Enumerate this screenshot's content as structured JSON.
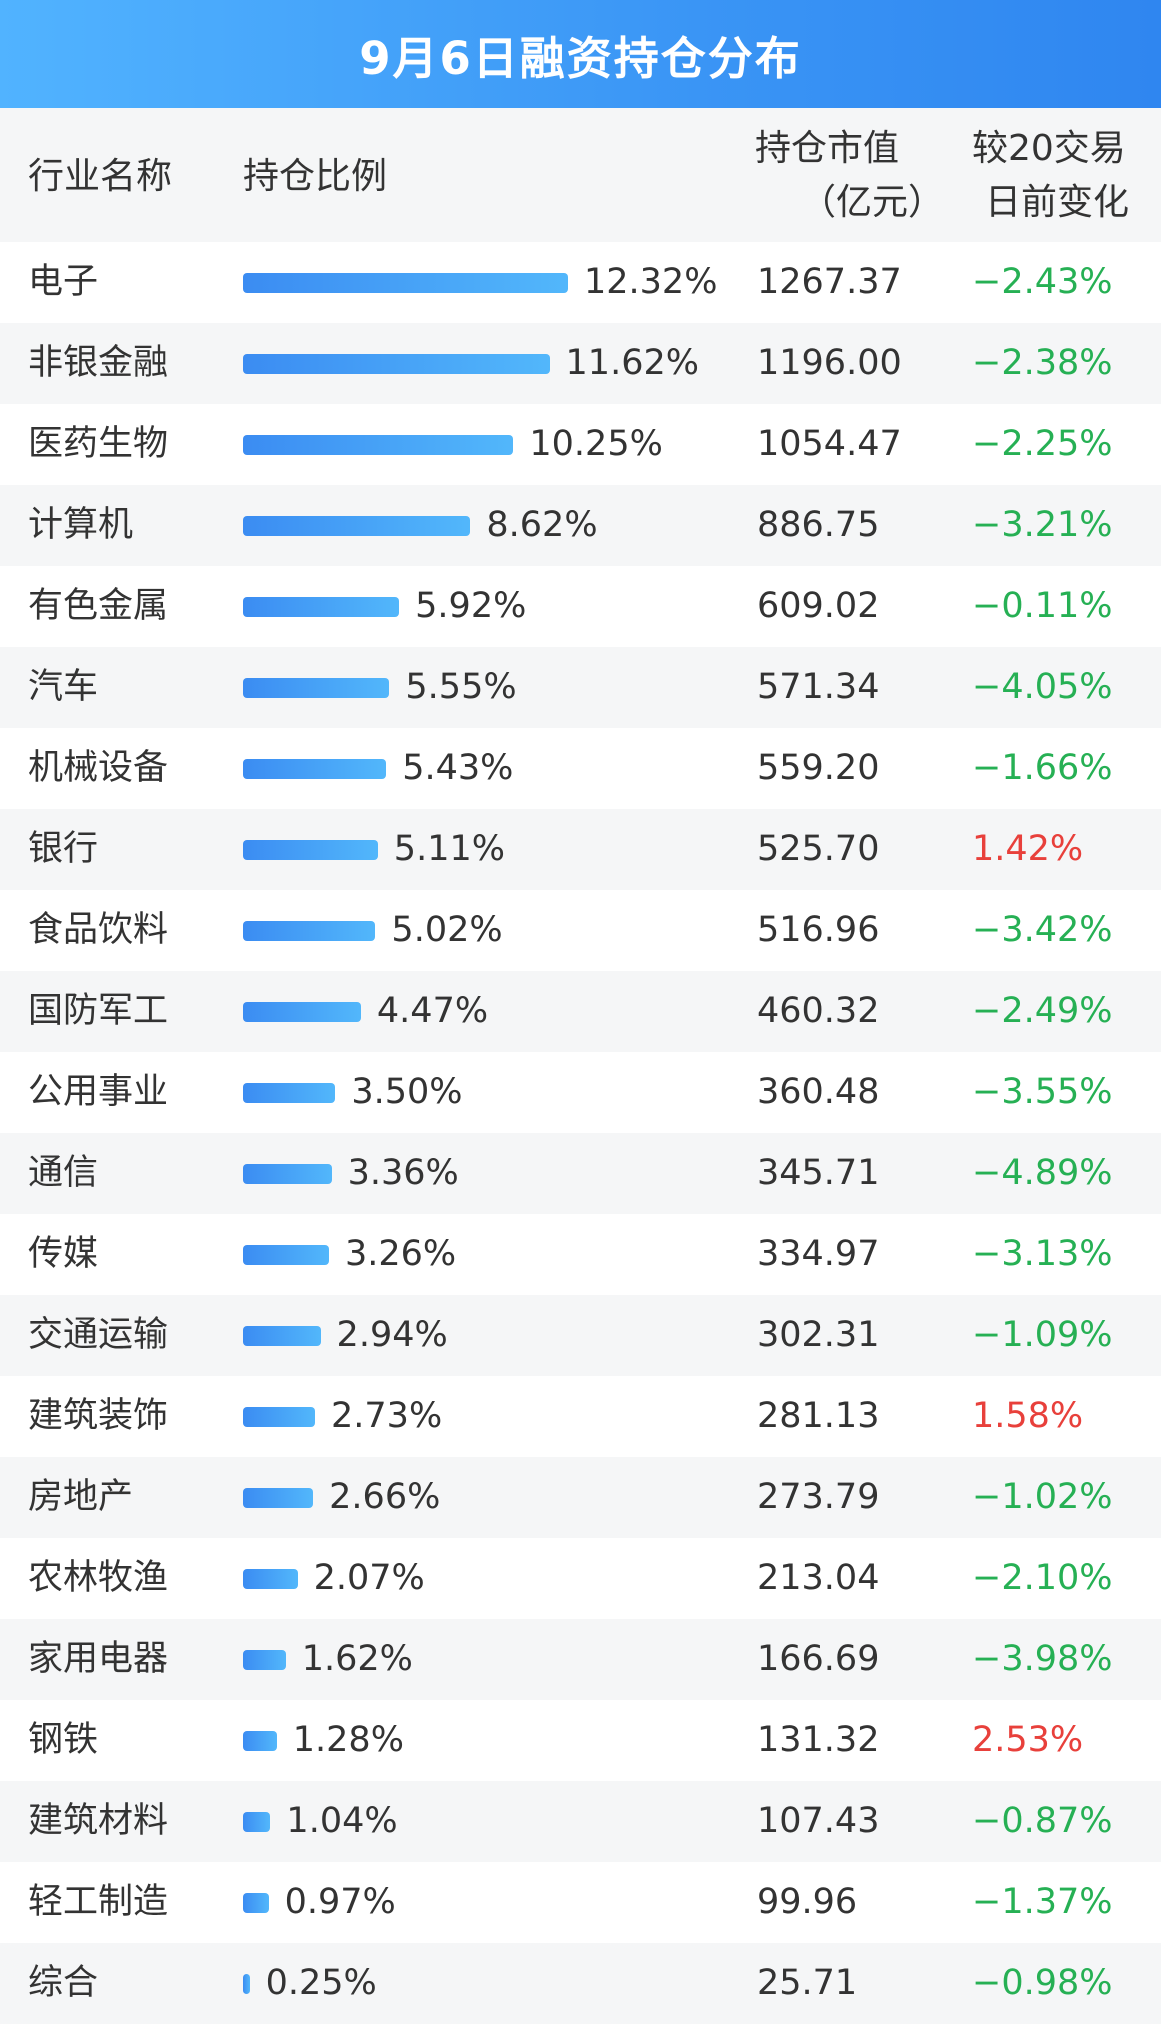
{
  "title": "9月6日融资持仓分布",
  "headers": {
    "industry": "行业名称",
    "ratio": "持仓比例",
    "value_line1": "持仓市值",
    "value_line2": "（亿元）",
    "change_line1": "较20交易",
    "change_line2": "日前变化"
  },
  "colors": {
    "title_bg": "#3a95f5",
    "bar": "#3b8cf2",
    "negative": "#26b054",
    "positive": "#e8403b",
    "stripe": "#f5f6f7"
  },
  "chart_data": {
    "type": "bar",
    "orientation": "horizontal",
    "categories": [
      "电子",
      "非银金融",
      "医药生物",
      "计算机",
      "有色金属",
      "汽车",
      "机械设备",
      "银行",
      "食品饮料",
      "国防军工",
      "公用事业",
      "通信",
      "传媒",
      "交通运输",
      "建筑装饰",
      "房地产",
      "农林牧渔",
      "家用电器",
      "钢铁",
      "建筑材料",
      "轻工制造",
      "综合"
    ],
    "ratio_values": [
      12.32,
      11.62,
      10.25,
      8.62,
      5.92,
      5.55,
      5.43,
      5.11,
      5.02,
      4.47,
      3.5,
      3.36,
      3.26,
      2.94,
      2.73,
      2.66,
      2.07,
      1.62,
      1.28,
      1.04,
      0.97,
      0.25
    ],
    "ratio_labels": [
      "12.32%",
      "11.62%",
      "10.25%",
      "8.62%",
      "5.92%",
      "5.55%",
      "5.43%",
      "5.11%",
      "5.02%",
      "4.47%",
      "3.50%",
      "3.36%",
      "3.26%",
      "2.94%",
      "2.73%",
      "2.66%",
      "2.07%",
      "1.62%",
      "1.28%",
      "1.04%",
      "0.97%",
      "0.25%"
    ],
    "market_values": [
      "1267.37",
      "1196.00",
      "1054.47",
      "886.75",
      "609.02",
      "571.34",
      "559.20",
      "525.70",
      "516.96",
      "460.32",
      "360.48",
      "345.71",
      "334.97",
      "302.31",
      "281.13",
      "273.79",
      "213.04",
      "166.69",
      "131.32",
      "107.43",
      "99.96",
      "25.71"
    ],
    "changes": [
      "−2.43%",
      "−2.38%",
      "−2.25%",
      "−3.21%",
      "−0.11%",
      "−4.05%",
      "−1.66%",
      "1.42%",
      "−3.42%",
      "−2.49%",
      "−3.55%",
      "−4.89%",
      "−3.13%",
      "−1.09%",
      "1.58%",
      "−1.02%",
      "−2.10%",
      "−3.98%",
      "2.53%",
      "−0.87%",
      "−1.37%",
      "−0.98%"
    ],
    "change_values": [
      -2.43,
      -2.38,
      -2.25,
      -3.21,
      -0.11,
      -4.05,
      -1.66,
      1.42,
      -3.42,
      -2.49,
      -3.55,
      -4.89,
      -3.13,
      -1.09,
      1.58,
      -1.02,
      -2.1,
      -3.98,
      2.53,
      -0.87,
      -1.37,
      -0.98
    ]
  }
}
